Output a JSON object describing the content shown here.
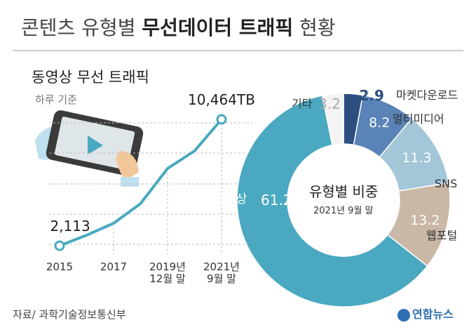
{
  "header": {
    "title_parts": [
      "콘텐츠 유형별",
      "무선데이터 트래픽",
      "현황"
    ]
  },
  "chart_data": [
    {
      "type": "line",
      "title": "동영상 무선 트래픽",
      "subtitle": "하루 기준",
      "categories": [
        "2015",
        null,
        "2017",
        null,
        "2019년 12월 말",
        null,
        "2021년 9월 말"
      ],
      "values": [
        2113,
        2809,
        3598,
        4897,
        7217,
        8377,
        10464
      ],
      "value_labels": [
        "2,113",
        null,
        null,
        null,
        null,
        null,
        "10,464TB"
      ],
      "color": "#4aa9c0"
    },
    {
      "type": "donut",
      "title": "유형별 비중",
      "subtitle": "2021년 9월 말",
      "categories": [
        "마켓다운로드",
        "멀티미디어",
        "SNS",
        "웹포털",
        "동영상",
        "기타"
      ],
      "values": [
        2.9,
        8.2,
        11.3,
        13.2,
        61.2,
        3.2
      ],
      "value_labels": [
        "2.9",
        "8.2",
        "11.3",
        "13.2",
        "61.2%",
        "3.2"
      ],
      "colors": [
        "#2d4e80",
        "#5a83b8",
        "#a3c6d8",
        "#c9b8a6",
        "#4aa9c0",
        "#f4f4f4"
      ]
    }
  ],
  "footer": {
    "source": "자료/ 과학기술정보통신부",
    "logo": "연합뉴스"
  }
}
